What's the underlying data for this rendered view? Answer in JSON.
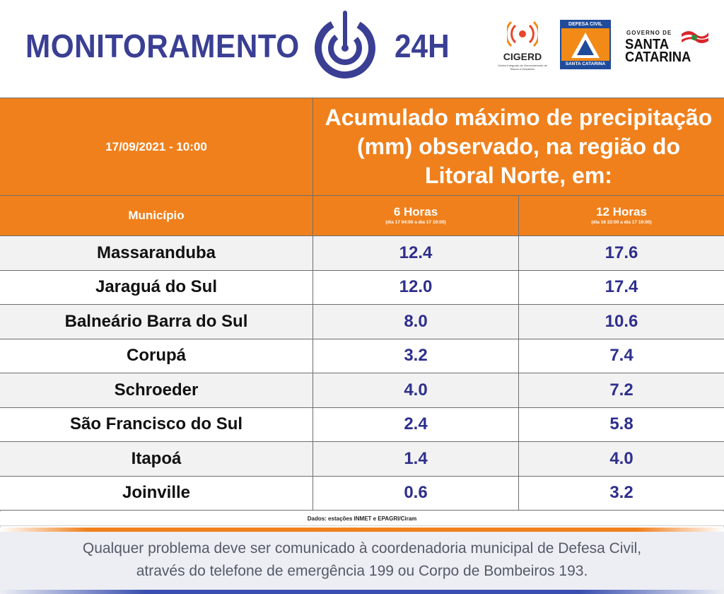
{
  "header": {
    "title": "MONITORAMENTO",
    "title_suffix": "24H",
    "accent_color": "#3a3f94",
    "partners": {
      "cigerd": {
        "name": "CIGERD",
        "subtitle": "Centro Integrado de Gerenciamento de Riscos e Desastres"
      },
      "defesa_civil": {
        "top": "DEFESA CIVIL",
        "bottom": "SANTA CATARINA"
      },
      "governo": {
        "small": "GOVERNO DE",
        "line1": "SANTA",
        "line2": "CATARINA"
      }
    }
  },
  "table": {
    "datetime": "17/09/2021 - 10:00",
    "title": "Acumulado máximo de precipitação (mm) observado, na região do Litoral Norte, em:",
    "header_color": "#f0801c",
    "municipio_label": "Município",
    "columns": [
      {
        "label": "6 Horas",
        "range": "(dia 17 04:00 a dia 17 10:00)"
      },
      {
        "label": "12 Horas",
        "range": "(dia 16 22:00 a dia 17 10:00)"
      }
    ],
    "rows": [
      {
        "municipio": "Massaranduba",
        "h6": "12.4",
        "h12": "17.6"
      },
      {
        "municipio": "Jaraguá do Sul",
        "h6": "12.0",
        "h12": "17.4"
      },
      {
        "municipio": "Balneário Barra do Sul",
        "h6": "8.0",
        "h12": "10.6"
      },
      {
        "municipio": "Corupá",
        "h6": "3.2",
        "h12": "7.4"
      },
      {
        "municipio": "Schroeder",
        "h6": "4.0",
        "h12": "7.2"
      },
      {
        "municipio": "São Francisco do Sul",
        "h6": "2.4",
        "h12": "5.8"
      },
      {
        "municipio": "Itapoá",
        "h6": "1.4",
        "h12": "4.0"
      },
      {
        "municipio": "Joinville",
        "h6": "0.6",
        "h12": "3.2"
      }
    ],
    "source": "Dados: estações INMET e EPAGRI/Ciram"
  },
  "footer": {
    "line1": "Qualquer problema deve ser comunicado à coordenadoria municipal de Defesa Civil,",
    "line2": "através do telefone de emergência 199 ou Corpo de Bombeiros 193."
  }
}
